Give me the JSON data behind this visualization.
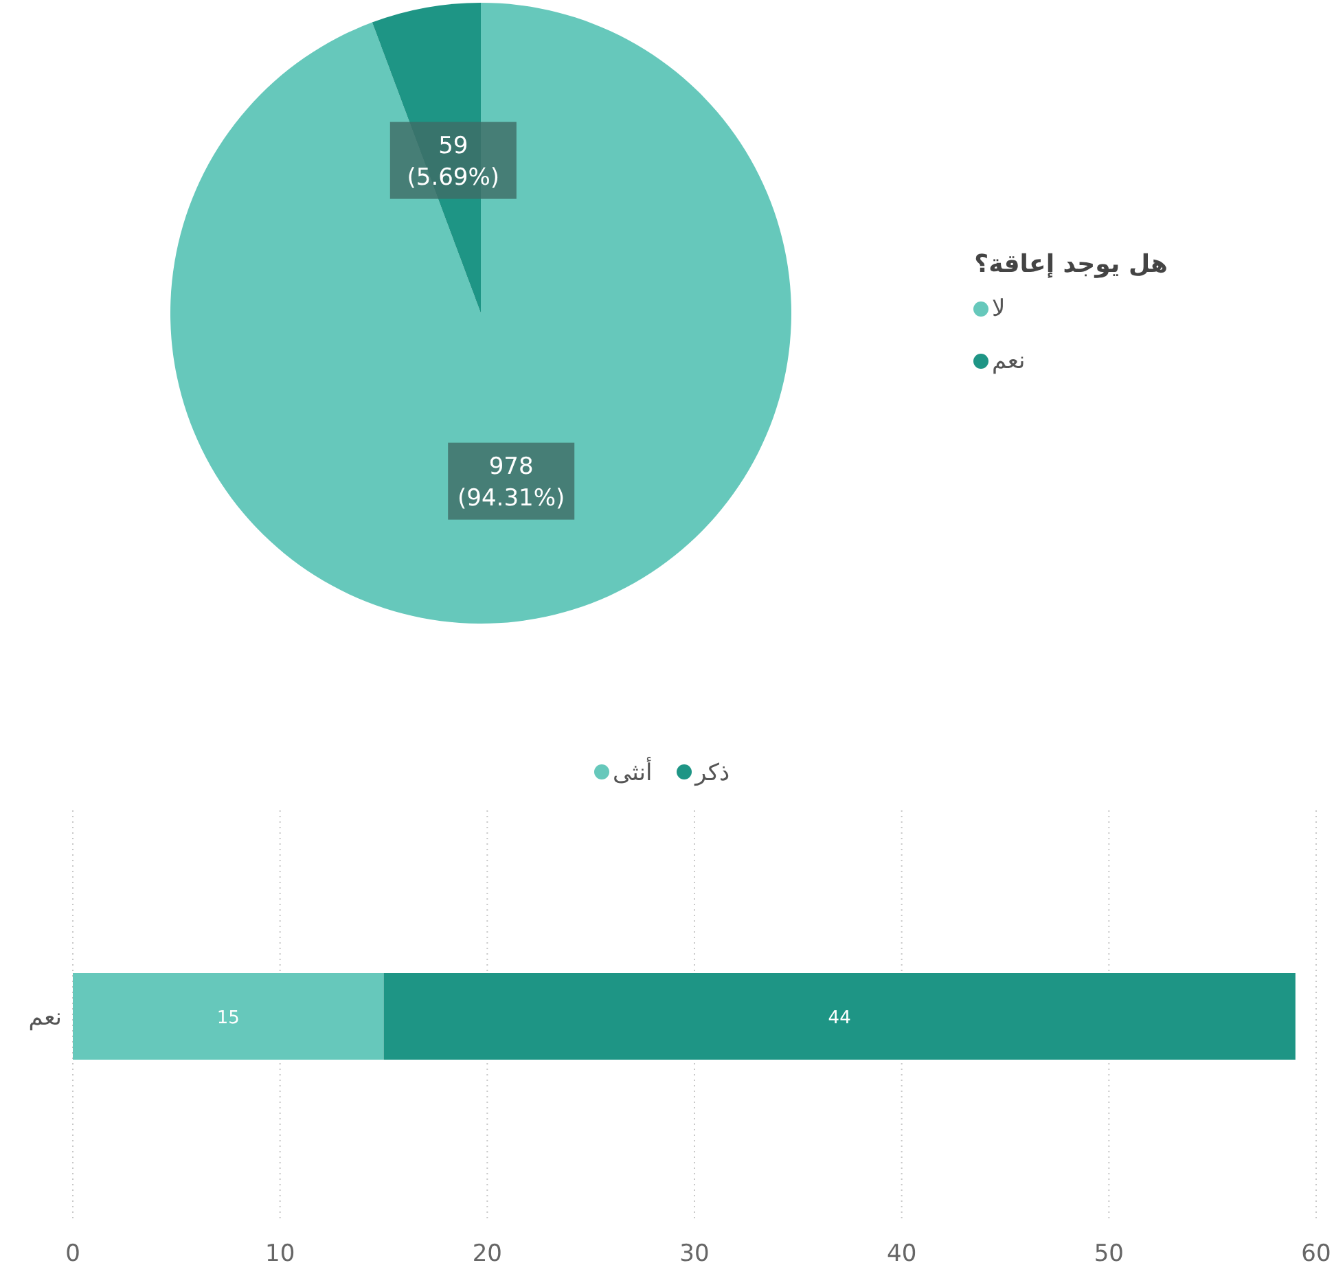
{
  "chart_data": [
    {
      "type": "pie",
      "legend_title": "هل يوجد إعاقة؟",
      "categories": [
        "لا",
        "نعم"
      ],
      "values": [
        978,
        59
      ],
      "colors": [
        "#66c8bb",
        "#1e9585"
      ],
      "value_labels": [
        "978\n(94.31%)",
        "59\n(5.69%)"
      ],
      "legend": "right"
    },
    {
      "type": "bar",
      "orientation": "horizontal",
      "stacked": true,
      "categories": [
        "نعم"
      ],
      "series": [
        {
          "name": "أنثى",
          "color": "#66c8bb",
          "values": [
            15
          ]
        },
        {
          "name": "ذكر",
          "color": "#1e9585",
          "values": [
            44
          ]
        }
      ],
      "xlim": [
        0,
        60
      ],
      "xticks": [
        0,
        10,
        20,
        30,
        40,
        50,
        60
      ],
      "grid": "x",
      "legend": "top",
      "data_labels": true
    }
  ]
}
